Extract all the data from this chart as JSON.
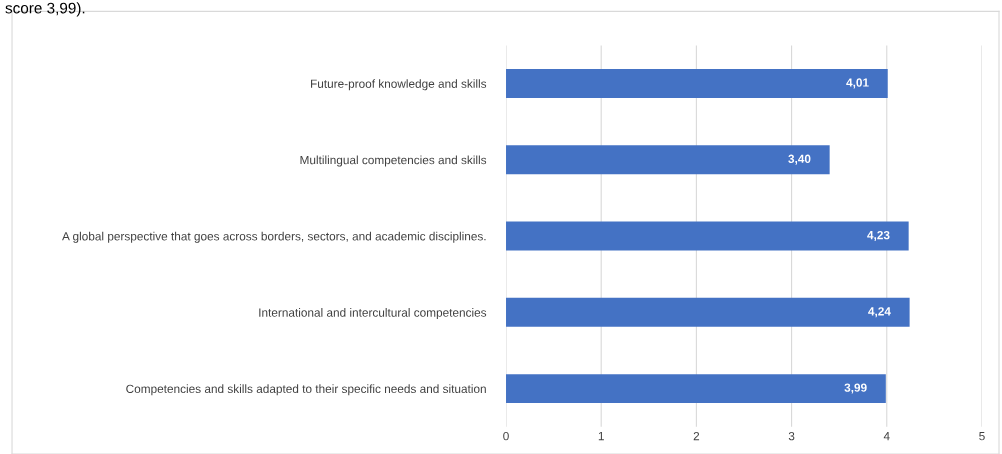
{
  "chart_data": {
    "type": "bar",
    "orientation": "horizontal",
    "categories": [
      "Future-proof knowledge and skills",
      "Multilingual competencies and skills",
      "A global perspective that goes across borders, sectors, and academic disciplines.",
      "International and intercultural competencies",
      "Competencies and skills adapted to their specific needs and situation"
    ],
    "values": [
      4.01,
      3.4,
      4.23,
      4.24,
      3.99
    ],
    "value_labels": [
      "4,01",
      "3,40",
      "4,23",
      "4,24",
      "3,99"
    ],
    "color": "#4472c4",
    "xlim": [
      0,
      5
    ],
    "xticks": [
      0,
      1,
      2,
      3,
      4,
      5
    ],
    "grid": "x",
    "annotations": [
      "score 3,99)."
    ]
  }
}
